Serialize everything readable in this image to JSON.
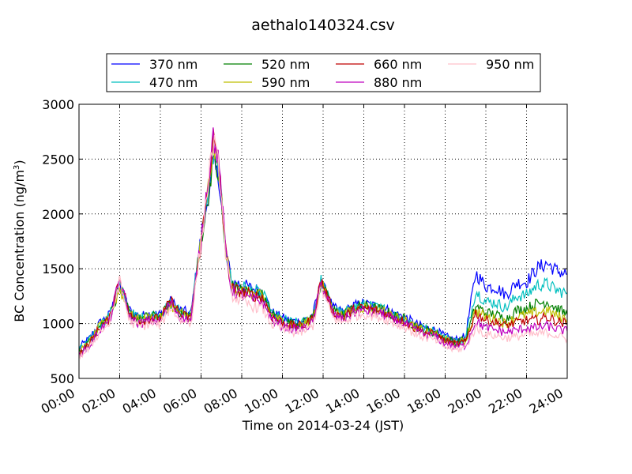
{
  "chart_data": {
    "type": "line",
    "title": "aethalo140324.csv",
    "xlabel": "Time on 2014-03-24 (JST)",
    "ylabel": "BC Concentration (ng/m³)",
    "ylabel_main": "BC Concentration (ng/m",
    "ylabel_sup": "3",
    "ylabel_end": ")",
    "xlim_hours": [
      0,
      24
    ],
    "ylim": [
      500,
      3000
    ],
    "x_ticks": [
      {
        "hour": 0,
        "label": "00:00"
      },
      {
        "hour": 2,
        "label": "02:00"
      },
      {
        "hour": 4,
        "label": "04:00"
      },
      {
        "hour": 6,
        "label": "06:00"
      },
      {
        "hour": 8,
        "label": "08:00"
      },
      {
        "hour": 10,
        "label": "10:00"
      },
      {
        "hour": 12,
        "label": "12:00"
      },
      {
        "hour": 14,
        "label": "14:00"
      },
      {
        "hour": 16,
        "label": "16:00"
      },
      {
        "hour": 18,
        "label": "18:00"
      },
      {
        "hour": 20,
        "label": "20:00"
      },
      {
        "hour": 22,
        "label": "22:00"
      },
      {
        "hour": 24,
        "label": "24:00"
      }
    ],
    "y_ticks": [
      500,
      1000,
      1500,
      2000,
      2500,
      3000
    ],
    "grid": true,
    "legend_position": "top",
    "x_hours": [
      0.0,
      0.5,
      1.0,
      1.5,
      2.0,
      2.5,
      3.0,
      3.5,
      4.0,
      4.5,
      5.0,
      5.5,
      6.0,
      6.3,
      6.6,
      6.9,
      7.2,
      7.5,
      8.0,
      8.5,
      9.0,
      9.5,
      10.0,
      10.5,
      11.0,
      11.5,
      11.9,
      12.5,
      13.0,
      13.5,
      14.0,
      14.5,
      15.0,
      15.5,
      16.0,
      16.5,
      17.0,
      17.5,
      18.0,
      18.5,
      19.0,
      19.5,
      20.0,
      20.5,
      21.0,
      21.5,
      22.0,
      22.5,
      23.0,
      23.5,
      24.0
    ],
    "series": [
      {
        "name": "370 nm",
        "color": "#0000ff",
        "values": [
          780,
          860,
          1000,
          1080,
          1340,
          1120,
          1060,
          1090,
          1080,
          1200,
          1120,
          1090,
          1800,
          2100,
          2460,
          2300,
          1700,
          1380,
          1360,
          1320,
          1300,
          1100,
          1050,
          1020,
          1020,
          1080,
          1380,
          1140,
          1100,
          1160,
          1180,
          1160,
          1140,
          1090,
          1060,
          1000,
          960,
          940,
          880,
          850,
          880,
          1460,
          1340,
          1330,
          1260,
          1370,
          1380,
          1500,
          1550,
          1480,
          1450
        ]
      },
      {
        "name": "470 nm",
        "color": "#00bfbf",
        "values": [
          760,
          840,
          990,
          1070,
          1360,
          1100,
          1050,
          1080,
          1070,
          1190,
          1110,
          1080,
          1780,
          2120,
          2500,
          2340,
          1690,
          1370,
          1340,
          1300,
          1280,
          1090,
          1040,
          1010,
          1010,
          1070,
          1390,
          1130,
          1090,
          1150,
          1170,
          1150,
          1130,
          1080,
          1050,
          990,
          950,
          930,
          870,
          840,
          860,
          1300,
          1200,
          1190,
          1140,
          1250,
          1260,
          1350,
          1360,
          1300,
          1280
        ]
      },
      {
        "name": "520 nm",
        "color": "#007f00",
        "values": [
          750,
          830,
          980,
          1060,
          1330,
          1090,
          1040,
          1070,
          1060,
          1180,
          1100,
          1070,
          1760,
          2080,
          2540,
          2300,
          1660,
          1340,
          1310,
          1280,
          1260,
          1080,
          1030,
          1000,
          1000,
          1060,
          1370,
          1120,
          1080,
          1140,
          1160,
          1140,
          1120,
          1070,
          1040,
          980,
          940,
          920,
          860,
          830,
          850,
          1160,
          1100,
          1080,
          1040,
          1120,
          1140,
          1180,
          1200,
          1140,
          1080
        ]
      },
      {
        "name": "590 nm",
        "color": "#bfbf00",
        "values": [
          740,
          820,
          970,
          1050,
          1320,
          1080,
          1030,
          1060,
          1050,
          1170,
          1090,
          1060,
          1750,
          2160,
          2620,
          2380,
          1680,
          1330,
          1300,
          1270,
          1250,
          1070,
          1020,
          990,
          990,
          1050,
          1360,
          1110,
          1070,
          1130,
          1150,
          1130,
          1110,
          1060,
          1030,
          970,
          930,
          910,
          850,
          820,
          840,
          1120,
          1060,
          1040,
          1000,
          1060,
          1080,
          1100,
          1120,
          1070,
          1040
        ]
      },
      {
        "name": "660 nm",
        "color": "#bf0000",
        "values": [
          730,
          810,
          960,
          1040,
          1430,
          1070,
          1020,
          1050,
          1040,
          1210,
          1080,
          1050,
          1740,
          2180,
          2700,
          2400,
          1680,
          1320,
          1290,
          1260,
          1240,
          1060,
          1010,
          980,
          980,
          1040,
          1400,
          1100,
          1060,
          1120,
          1140,
          1120,
          1100,
          1050,
          1020,
          960,
          920,
          900,
          840,
          810,
          830,
          1100,
          1030,
          1010,
          980,
          1010,
          1030,
          1030,
          1060,
          1020,
          1000
        ]
      },
      {
        "name": "880 nm",
        "color": "#bf00bf",
        "values": [
          720,
          790,
          940,
          1020,
          1410,
          1050,
          1000,
          1030,
          1020,
          1190,
          1060,
          1030,
          1760,
          2250,
          2720,
          2420,
          1690,
          1300,
          1260,
          1220,
          1200,
          1030,
          980,
          950,
          950,
          1010,
          1370,
          1080,
          1040,
          1100,
          1120,
          1100,
          1080,
          1030,
          1000,
          940,
          900,
          880,
          820,
          790,
          800,
          1020,
          960,
          940,
          920,
          940,
          960,
          960,
          980,
          950,
          930
        ]
      },
      {
        "name": "950 nm",
        "color": "#ffc0cb",
        "values": [
          700,
          770,
          920,
          1000,
          1380,
          1020,
          970,
          1000,
          990,
          1150,
          1030,
          1000,
          1740,
          2200,
          2680,
          2380,
          1660,
          1260,
          1200,
          1160,
          1140,
          990,
          950,
          920,
          920,
          980,
          1320,
          1050,
          1010,
          1070,
          1090,
          1070,
          1050,
          1000,
          970,
          910,
          870,
          850,
          790,
          760,
          780,
          960,
          900,
          890,
          870,
          880,
          900,
          900,
          920,
          890,
          860
        ]
      }
    ]
  }
}
